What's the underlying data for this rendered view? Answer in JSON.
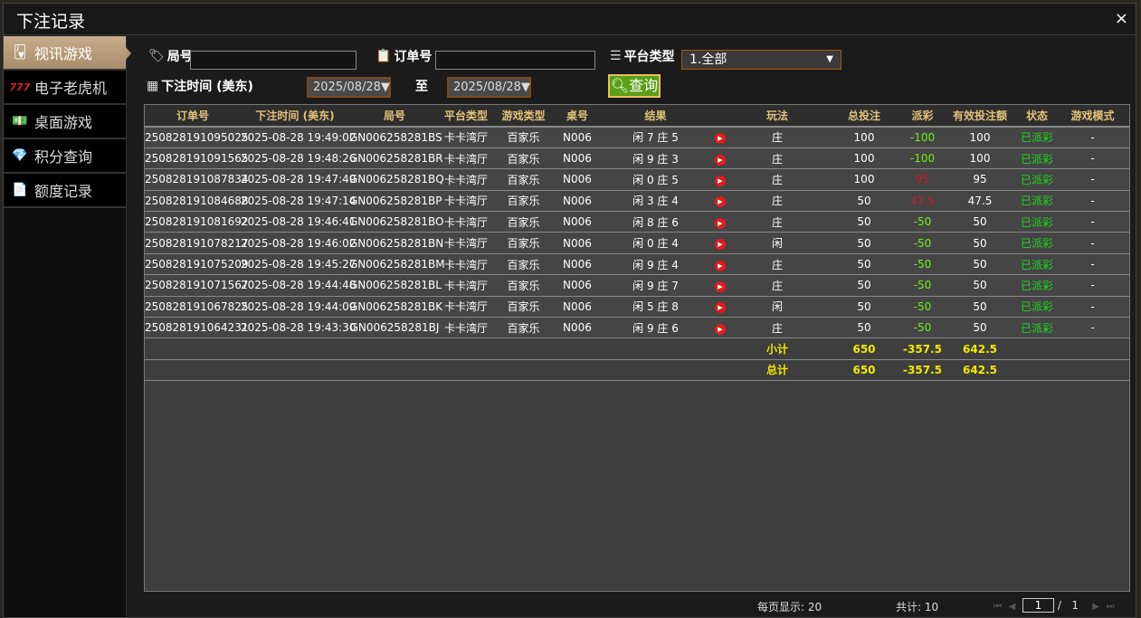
{
  "window": {
    "title": "下注记录",
    "close": "×"
  },
  "sidebar": {
    "items": [
      {
        "label": "视讯游戏",
        "icon": "playing-cards-icon",
        "glyph": "🂻"
      },
      {
        "label": "电子老虎机",
        "icon": "slot-777-icon",
        "glyph": "777"
      },
      {
        "label": "桌面游戏",
        "icon": "money-chips-icon",
        "glyph": "💵"
      },
      {
        "label": "积分查询",
        "icon": "diamond-icon",
        "glyph": "💎"
      },
      {
        "label": "额度记录",
        "icon": "document-icon",
        "glyph": "📄"
      }
    ]
  },
  "filters": {
    "round_label": "局号",
    "round_value": "",
    "order_label": "订单号",
    "order_value": "",
    "platform_label": "平台类型",
    "platform_value": "1.全部",
    "time_label": "下注时间 (美东)",
    "date_from": "2025/08/28",
    "to_label": "至",
    "date_to": "2025/08/28",
    "query_label": "查询"
  },
  "table": {
    "headers": [
      "订单号",
      "下注时间 (美东)",
      "局号",
      "平台类型",
      "游戏类型",
      "桌号",
      "结果",
      "",
      "玩法",
      "总投注",
      "派彩",
      "有效投注额",
      "状态",
      "游戏模式"
    ],
    "rows": [
      [
        "250828191095025",
        "2025-08-28 19:49:02",
        "GN006258281BS",
        "卡卡湾厅",
        "百家乐",
        "N006",
        "闲 7 庄 5",
        "",
        "庄",
        "100",
        "-100",
        "100",
        "已派彩",
        "-"
      ],
      [
        "250828191091565",
        "2025-08-28 19:48:26",
        "GN006258281BR",
        "卡卡湾厅",
        "百家乐",
        "N006",
        "闲 9 庄 3",
        "",
        "庄",
        "100",
        "-100",
        "100",
        "已派彩",
        "-"
      ],
      [
        "250828191087834",
        "2025-08-28 19:47:49",
        "GN006258281BQ",
        "卡卡湾厅",
        "百家乐",
        "N006",
        "闲 0 庄 5",
        "",
        "庄",
        "100",
        "95",
        "95",
        "已派彩",
        "-"
      ],
      [
        "250828191084688",
        "2025-08-28 19:47:14",
        "GN006258281BP",
        "卡卡湾厅",
        "百家乐",
        "N006",
        "闲 3 庄 4",
        "",
        "庄",
        "50",
        "47.5",
        "47.5",
        "已派彩",
        "-"
      ],
      [
        "250828191081692",
        "2025-08-28 19:46:41",
        "GN006258281BO",
        "卡卡湾厅",
        "百家乐",
        "N006",
        "闲 8 庄 6",
        "",
        "庄",
        "50",
        "-50",
        "50",
        "已派彩",
        "-"
      ],
      [
        "250828191078217",
        "2025-08-28 19:46:02",
        "GN006258281BN",
        "卡卡湾厅",
        "百家乐",
        "N006",
        "闲 0 庄 4",
        "",
        "闲",
        "50",
        "-50",
        "50",
        "已派彩",
        "-"
      ],
      [
        "250828191075209",
        "2025-08-28 19:45:27",
        "GN006258281BM",
        "卡卡湾厅",
        "百家乐",
        "N006",
        "闲 9 庄 4",
        "",
        "庄",
        "50",
        "-50",
        "50",
        "已派彩",
        "-"
      ],
      [
        "250828191071567",
        "2025-08-28 19:44:48",
        "GN006258281BL",
        "卡卡湾厅",
        "百家乐",
        "N006",
        "闲 9 庄 7",
        "",
        "庄",
        "50",
        "-50",
        "50",
        "已派彩",
        "-"
      ],
      [
        "250828191067825",
        "2025-08-28 19:44:09",
        "GN006258281BK",
        "卡卡湾厅",
        "百家乐",
        "N006",
        "闲 5 庄 8",
        "",
        "闲",
        "50",
        "-50",
        "50",
        "已派彩",
        "-"
      ],
      [
        "250828191064231",
        "2025-08-28 19:43:30",
        "GN006258281BJ",
        "卡卡湾厅",
        "百家乐",
        "N006",
        "闲 9 庄 6",
        "",
        "庄",
        "50",
        "-50",
        "50",
        "已派彩",
        "-"
      ]
    ],
    "subtotal": {
      "label": "小计",
      "total_bet": "650",
      "payout": "-357.5",
      "valid_bet": "642.5"
    },
    "total": {
      "label": "总计",
      "total_bet": "650",
      "payout": "-357.5",
      "valid_bet": "642.5"
    }
  },
  "pager": {
    "per_page": "每页显示: 20",
    "count": "共计: 10",
    "page": "1",
    "sep": "/",
    "pages": "1"
  },
  "colors": {
    "header_text": "#e3c27a",
    "negative": "#6cf016",
    "positive": "#d01830",
    "status": "#22d622",
    "summary": "#f5e800",
    "query_button": "#5aa017"
  }
}
